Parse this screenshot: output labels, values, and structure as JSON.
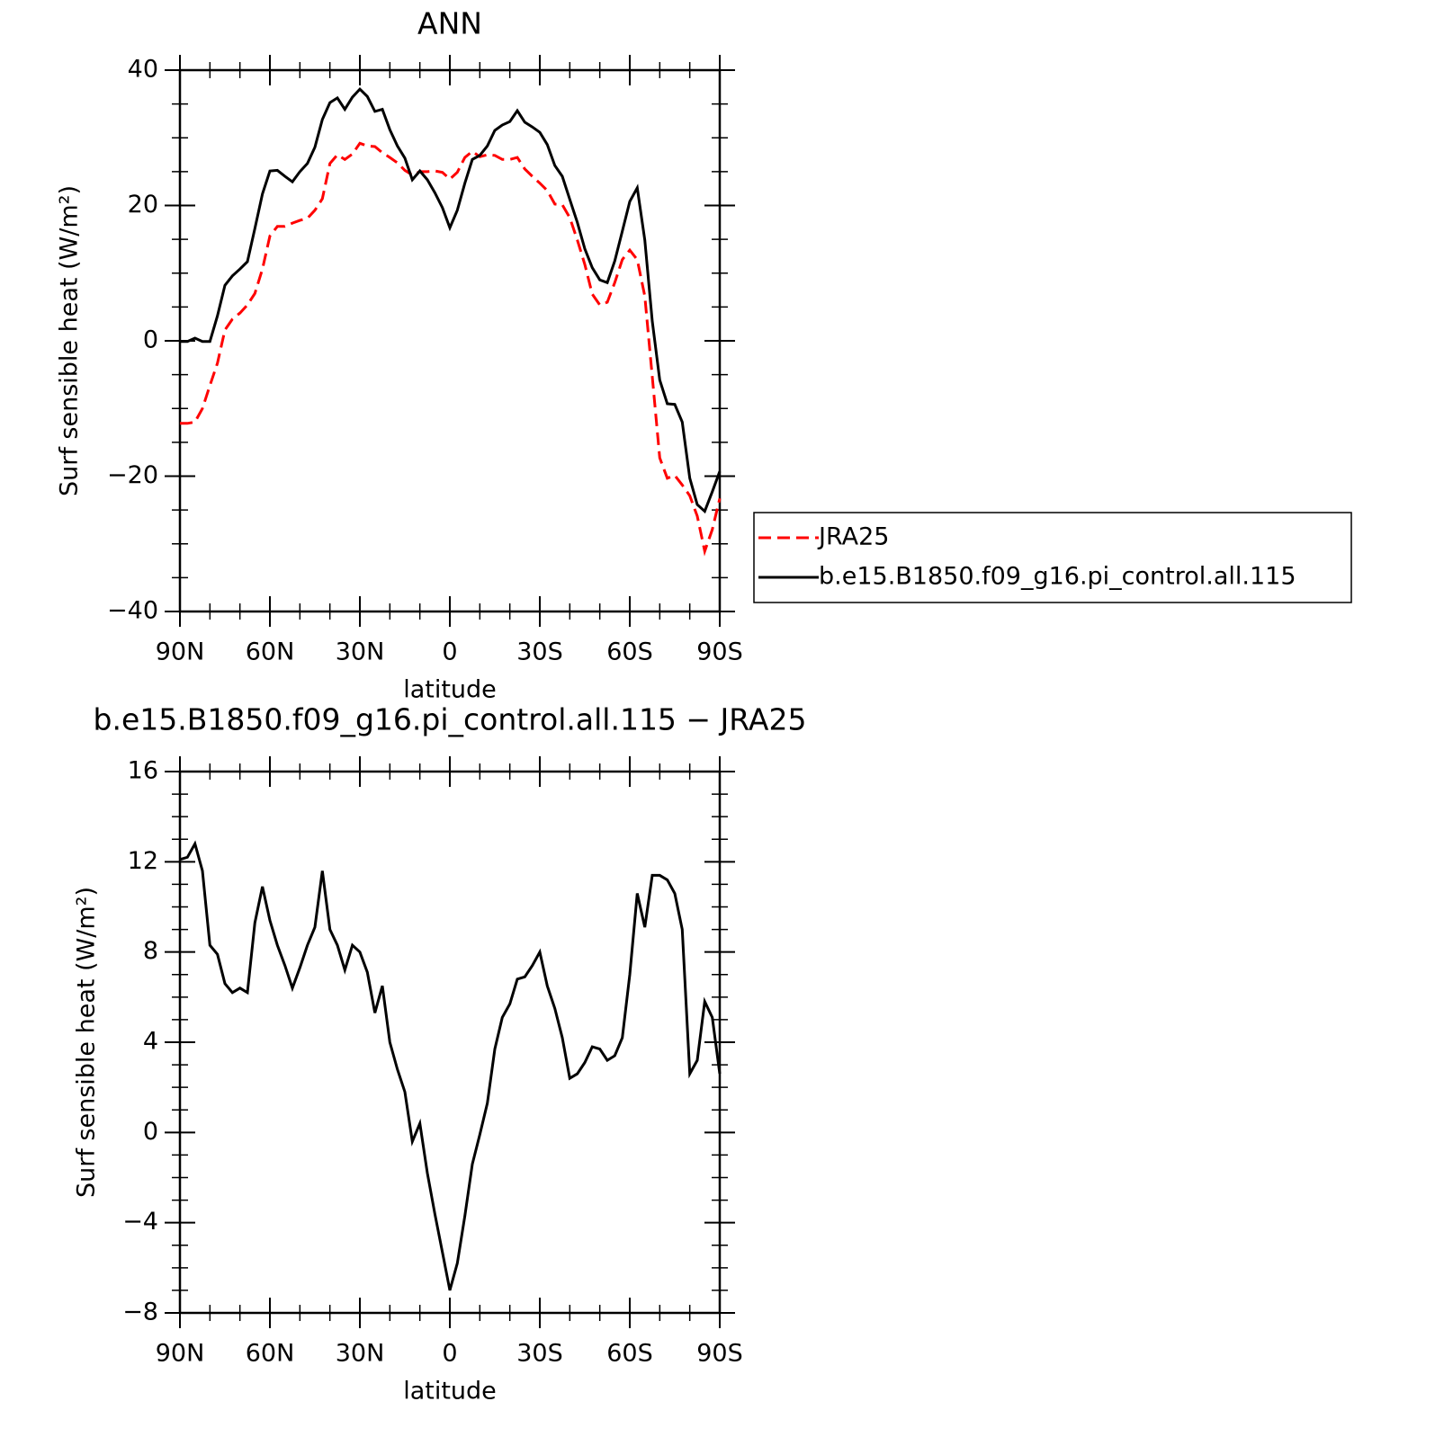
{
  "chart_data": [
    {
      "type": "line",
      "title": "ANN",
      "xlabel": "latitude",
      "ylabel": "Surf sensible heat (W/m²)",
      "x": [
        90,
        87.5,
        85,
        82.5,
        80,
        77.5,
        75,
        72.5,
        70,
        67.5,
        65,
        62.5,
        60,
        57.5,
        55,
        52.5,
        50,
        47.5,
        45,
        42.5,
        40,
        37.5,
        35,
        32.5,
        30,
        27.5,
        25,
        22.5,
        20,
        17.5,
        15,
        12.5,
        10,
        7.5,
        5,
        2.5,
        0,
        -2.5,
        -5,
        -7.5,
        -10,
        -12.5,
        -15,
        -17.5,
        -20,
        -22.5,
        -25,
        -27.5,
        -30,
        -32.5,
        -35,
        -37.5,
        -40,
        -42.5,
        -45,
        -47.5,
        -50,
        -52.5,
        -55,
        -57.5,
        -60,
        -62.5,
        -65,
        -67.5,
        -70,
        -72.5,
        -75,
        -77.5,
        -80,
        -82.5,
        -85,
        -87.5,
        -90
      ],
      "series": [
        {
          "name": "JRA25",
          "color": "#ff0000",
          "line_style": "dashed",
          "values": [
            -12.2,
            -12.2,
            -12,
            -10,
            -6.6,
            -3.3,
            1.6,
            3.2,
            4.1,
            5.3,
            7,
            10.6,
            15.5,
            16.9,
            16.9,
            17.4,
            17.8,
            18.1,
            19.3,
            21,
            26.2,
            27.5,
            26.8,
            27.6,
            29.2,
            28.8,
            28.7,
            27.8,
            27.1,
            26.3,
            25.2,
            24.5,
            25,
            25,
            25.1,
            24.9,
            23.9,
            24.9,
            27.1,
            28,
            27.2,
            27.5,
            27.4,
            26.8,
            26.8,
            27.1,
            25.4,
            24.3,
            23.3,
            22.2,
            20.2,
            20.1,
            18.2,
            14.9,
            11.3,
            6.9,
            5.3,
            5.7,
            8.6,
            12,
            13.4,
            12,
            6.6,
            -5.3,
            -17.3,
            -20.3,
            -19.9,
            -21.3,
            -22.9,
            -25.9,
            -31.1,
            -27.9,
            -23.3
          ]
        },
        {
          "name": "b.e15.B1850.f09_g16.pi_control.all.115",
          "color": "#000000",
          "line_style": "solid",
          "values": [
            -0.1,
            -0.1,
            0.4,
            -0.1,
            -0.1,
            3.7,
            8.2,
            9.6,
            10.6,
            11.7,
            16.6,
            21.7,
            25.1,
            25.2,
            24.3,
            23.5,
            25,
            26.2,
            28.6,
            32.7,
            35.2,
            35.9,
            34.2,
            36,
            37.2,
            36.1,
            33.9,
            34.2,
            31.2,
            28.8,
            27,
            23.8,
            25.1,
            23.8,
            21.9,
            19.7,
            16.7,
            19.3,
            23.3,
            26.8,
            27.4,
            28.8,
            31.1,
            31.9,
            32.4,
            34,
            32.3,
            31.6,
            30.8,
            29,
            25.9,
            24.3,
            20.9,
            17.5,
            13.6,
            10.8,
            9,
            8.6,
            11.8,
            16.2,
            20.6,
            22.6,
            14.9,
            2.9,
            -5.8,
            -9.3,
            -9.4,
            -12,
            -20.3,
            -24.2,
            -25.2,
            -22.3,
            -19.3
          ]
        }
      ],
      "xlim": [
        90,
        -90
      ],
      "xticks": [
        {
          "value": 90,
          "label": "90N"
        },
        {
          "value": 60,
          "label": "60N"
        },
        {
          "value": 30,
          "label": "30N"
        },
        0,
        {
          "value": -30,
          "label": "30S"
        },
        {
          "value": -60,
          "label": "60S"
        },
        {
          "value": -90,
          "label": "90S"
        }
      ],
      "ylim": [
        -40,
        40
      ],
      "yticks": [
        {
          "value": -40,
          "label": "−40"
        },
        {
          "value": -20,
          "label": "−20"
        },
        0,
        20,
        40
      ],
      "legend": "right"
    },
    {
      "type": "line",
      "title": "b.e15.B1850.f09_g16.pi_control.all.115 − JRA25",
      "xlabel": "latitude",
      "ylabel": "Surf sensible heat (W/m²)",
      "x": [
        90,
        87.5,
        85,
        82.5,
        80,
        77.5,
        75,
        72.5,
        70,
        67.5,
        65,
        62.5,
        60,
        57.5,
        55,
        52.5,
        50,
        47.5,
        45,
        42.5,
        40,
        37.5,
        35,
        32.5,
        30,
        27.5,
        25,
        22.5,
        20,
        17.5,
        15,
        12.5,
        10,
        7.5,
        5,
        2.5,
        0,
        -2.5,
        -5,
        -7.5,
        -10,
        -12.5,
        -15,
        -17.5,
        -20,
        -22.5,
        -25,
        -27.5,
        -30,
        -32.5,
        -35,
        -37.5,
        -40,
        -42.5,
        -45,
        -47.5,
        -50,
        -52.5,
        -55,
        -57.5,
        -60,
        -62.5,
        -65,
        -67.5,
        -70,
        -72.5,
        -75,
        -77.5,
        -80,
        -82.5,
        -85,
        -87.5,
        -90
      ],
      "values": [
        12.1,
        12.2,
        12.8,
        11.6,
        8.3,
        7.9,
        6.6,
        6.2,
        6.4,
        6.2,
        9.3,
        10.9,
        9.4,
        8.3,
        7.4,
        6.4,
        7.3,
        8.3,
        9.1,
        11.6,
        9,
        8.3,
        7.2,
        8.3,
        8,
        7.1,
        5.3,
        6.5,
        4,
        2.8,
        1.8,
        -0.4,
        0.4,
        -1.8,
        -3.6,
        -5.3,
        -7,
        -5.8,
        -3.7,
        -1.4,
        -0.1,
        1.3,
        3.7,
        5.1,
        5.7,
        6.8,
        6.9,
        7.4,
        8,
        6.5,
        5.5,
        4.2,
        2.4,
        2.6,
        3.1,
        3.8,
        3.7,
        3.2,
        3.4,
        4.2,
        7,
        10.6,
        9.1,
        11.4,
        11.4,
        11.2,
        10.6,
        9,
        2.6,
        3.2,
        5.8,
        5.1,
        2.6
      ],
      "color": "#000000",
      "xlim": [
        90,
        -90
      ],
      "xticks": [
        {
          "value": 90,
          "label": "90N"
        },
        {
          "value": 60,
          "label": "60N"
        },
        {
          "value": 30,
          "label": "30N"
        },
        0,
        {
          "value": -30,
          "label": "30S"
        },
        {
          "value": -60,
          "label": "60S"
        },
        {
          "value": -90,
          "label": "90S"
        }
      ],
      "ylim": [
        -8,
        16
      ],
      "yticks": [
        {
          "value": -8,
          "label": "−8"
        },
        {
          "value": -4,
          "label": "−4"
        },
        0,
        4,
        8,
        12,
        16
      ]
    }
  ]
}
